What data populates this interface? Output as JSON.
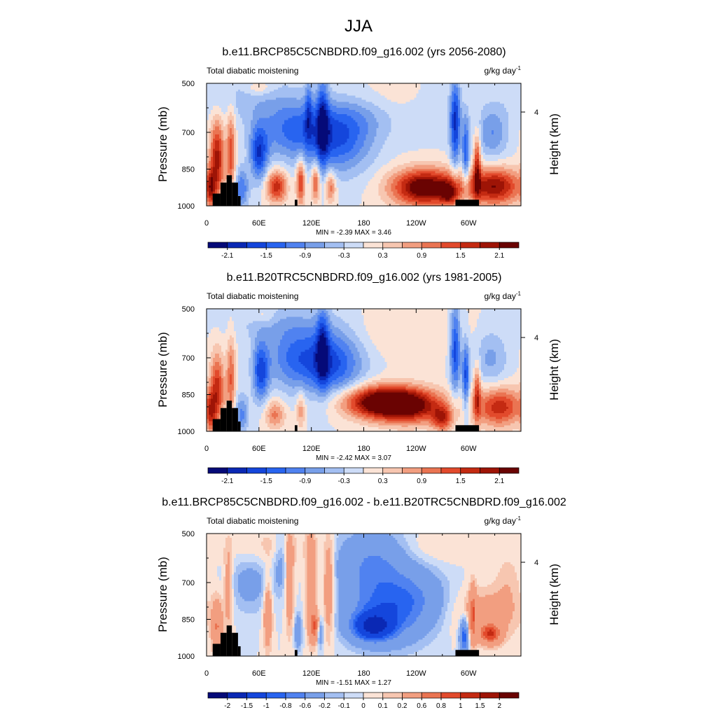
{
  "figure_title": "JJA",
  "chart_data": [
    {
      "type": "heatmap",
      "title": "b.e11.BRCP85C5CNBDRD.f09_g16.002 (yrs 2056-2080)",
      "left_string": "Total diabatic moistening",
      "units_base": "g/kg day",
      "units_exp": "-1",
      "ylabel": "Pressure (mb)",
      "ylabel_right": "Height (km)",
      "yticks": [
        "500",
        "700",
        "850",
        "1000"
      ],
      "yticks_right": [
        "4"
      ],
      "xticks": [
        "0",
        "60E",
        "120E",
        "180",
        "120W",
        "60W"
      ],
      "ylim": [
        1000,
        500
      ],
      "xlim": [
        0,
        360
      ],
      "min_max_text": "MIN =  -2.39  MAX =   3.46",
      "colorbar_labels": [
        "-2.1",
        "-1.5",
        "-0.9",
        "-0.3",
        "0.3",
        "0.9",
        "1.5",
        "2.1"
      ],
      "colorbar_label_every": 2,
      "colorbar_label_offset": 1,
      "blobs": [
        {
          "lon": 150,
          "p": 730,
          "rl": 40,
          "rp": 140,
          "v": -1.4
        },
        {
          "lon": 95,
          "p": 690,
          "rl": 40,
          "rp": 120,
          "v": -1.1
        },
        {
          "lon": 60,
          "p": 790,
          "rl": 10,
          "rp": 110,
          "v": -1.6
        },
        {
          "lon": 133,
          "p": 640,
          "rl": 7,
          "rp": 190,
          "v": -1.3
        },
        {
          "lon": 117,
          "p": 600,
          "rl": 4,
          "rp": 120,
          "v": -0.9
        },
        {
          "lon": 285,
          "p": 660,
          "rl": 6,
          "rp": 180,
          "v": -1.8
        },
        {
          "lon": 297,
          "p": 780,
          "rl": 4,
          "rp": 150,
          "v": -1.4
        },
        {
          "lon": 327,
          "p": 700,
          "rl": 18,
          "rp": 110,
          "v": -0.9
        },
        {
          "lon": 40,
          "p": 930,
          "rl": 8,
          "rp": 80,
          "v": -1.2
        },
        {
          "lon": 50,
          "p": 560,
          "rl": 70,
          "rp": 90,
          "v": -0.4
        },
        {
          "lon": 260,
          "p": 600,
          "rl": 30,
          "rp": 110,
          "v": -0.35
        },
        {
          "lon": 175,
          "p": 620,
          "rl": 50,
          "rp": 100,
          "v": -0.5
        },
        {
          "lon": 250,
          "p": 925,
          "rl": 38,
          "rp": 75,
          "v": 2.6
        },
        {
          "lon": 278,
          "p": 950,
          "rl": 10,
          "rp": 50,
          "v": 1.2
        },
        {
          "lon": 12,
          "p": 800,
          "rl": 8,
          "rp": 150,
          "v": 1.9
        },
        {
          "lon": 28,
          "p": 780,
          "rl": 5,
          "rp": 170,
          "v": 1.4
        },
        {
          "lon": 80,
          "p": 920,
          "rl": 12,
          "rp": 65,
          "v": 1.7
        },
        {
          "lon": 108,
          "p": 900,
          "rl": 5,
          "rp": 95,
          "v": 1.6
        },
        {
          "lon": 125,
          "p": 900,
          "rl": 5,
          "rp": 80,
          "v": 1.4
        },
        {
          "lon": 142,
          "p": 920,
          "rl": 6,
          "rp": 65,
          "v": 1.2
        },
        {
          "lon": 330,
          "p": 920,
          "rl": 30,
          "rp": 75,
          "v": 2.1
        },
        {
          "lon": 310,
          "p": 830,
          "rl": 4,
          "rp": 130,
          "v": 1.6
        },
        {
          "lon": 5,
          "p": 930,
          "rl": 5,
          "rp": 80,
          "v": 1.3
        },
        {
          "lon": 60,
          "p": 520,
          "rl": 15,
          "rp": 30,
          "v": 0.5
        },
        {
          "lon": 200,
          "p": 560,
          "rl": 90,
          "rp": 80,
          "v": 0.3
        }
      ]
    },
    {
      "type": "heatmap",
      "title": "b.e11.B20TRC5CNBDRD.f09_g16.002 (yrs 1981-2005)",
      "left_string": "Total diabatic moistening",
      "units_base": "g/kg day",
      "units_exp": "-1",
      "ylabel": "Pressure (mb)",
      "ylabel_right": "Height (km)",
      "yticks": [
        "500",
        "700",
        "850",
        "1000"
      ],
      "yticks_right": [
        "4"
      ],
      "xticks": [
        "0",
        "60E",
        "120E",
        "180",
        "120W",
        "60W"
      ],
      "ylim": [
        1000,
        500
      ],
      "xlim": [
        0,
        360
      ],
      "min_max_text": "MIN =  -2.42  MAX =   3.07",
      "colorbar_labels": [
        "-2.1",
        "-1.5",
        "-0.9",
        "-0.3",
        "0.3",
        "0.9",
        "1.5",
        "2.1"
      ],
      "colorbar_label_every": 2,
      "colorbar_label_offset": 1,
      "blobs": [
        {
          "lon": 145,
          "p": 720,
          "rl": 35,
          "rp": 140,
          "v": -1.5
        },
        {
          "lon": 100,
          "p": 700,
          "rl": 35,
          "rp": 130,
          "v": -1.1
        },
        {
          "lon": 62,
          "p": 760,
          "rl": 9,
          "rp": 120,
          "v": -1.5
        },
        {
          "lon": 133,
          "p": 650,
          "rl": 7,
          "rp": 170,
          "v": -1.2
        },
        {
          "lon": 285,
          "p": 660,
          "rl": 6,
          "rp": 180,
          "v": -1.7
        },
        {
          "lon": 297,
          "p": 780,
          "rl": 4,
          "rp": 150,
          "v": -1.5
        },
        {
          "lon": 325,
          "p": 700,
          "rl": 20,
          "rp": 120,
          "v": -0.7
        },
        {
          "lon": 40,
          "p": 930,
          "rl": 8,
          "rp": 80,
          "v": -1.0
        },
        {
          "lon": 85,
          "p": 560,
          "rl": 60,
          "rp": 80,
          "v": -0.4
        },
        {
          "lon": 200,
          "p": 880,
          "rl": 45,
          "rp": 65,
          "v": 2.6
        },
        {
          "lon": 235,
          "p": 900,
          "rl": 40,
          "rp": 70,
          "v": 1.6
        },
        {
          "lon": 270,
          "p": 950,
          "rl": 12,
          "rp": 50,
          "v": 1.4
        },
        {
          "lon": 12,
          "p": 820,
          "rl": 8,
          "rp": 140,
          "v": 1.6
        },
        {
          "lon": 28,
          "p": 780,
          "rl": 5,
          "rp": 170,
          "v": 1.2
        },
        {
          "lon": 78,
          "p": 930,
          "rl": 12,
          "rp": 60,
          "v": 1.0
        },
        {
          "lon": 108,
          "p": 910,
          "rl": 5,
          "rp": 80,
          "v": 0.8
        },
        {
          "lon": 335,
          "p": 900,
          "rl": 28,
          "rp": 80,
          "v": 1.7
        },
        {
          "lon": 310,
          "p": 840,
          "rl": 4,
          "rp": 120,
          "v": 1.3
        },
        {
          "lon": 5,
          "p": 930,
          "rl": 5,
          "rp": 80,
          "v": 1.1
        },
        {
          "lon": 65,
          "p": 530,
          "rl": 12,
          "rp": 30,
          "v": 0.4
        },
        {
          "lon": 230,
          "p": 600,
          "rl": 80,
          "rp": 100,
          "v": 0.3
        }
      ]
    },
    {
      "type": "heatmap",
      "title": "b.e11.BRCP85C5CNBDRD.f09_g16.002 - b.e11.B20TRC5CNBDRD.f09_g16.002",
      "left_string": "Total diabatic moistening",
      "units_base": "g/kg day",
      "units_exp": "-1",
      "ylabel": "Pressure (mb)",
      "ylabel_right": "Height (km)",
      "yticks": [
        "500",
        "700",
        "850",
        "1000"
      ],
      "yticks_right": [
        "4"
      ],
      "xticks": [
        "0",
        "60E",
        "120E",
        "180",
        "120W",
        "60W"
      ],
      "ylim": [
        1000,
        500
      ],
      "xlim": [
        0,
        360
      ],
      "min_max_text": "MIN =  -1.51  MAX =   1.27",
      "colorbar_labels": [
        "-2",
        "-1.5",
        "-1",
        "-0.8",
        "-0.6",
        "-0.2",
        "-0.1",
        "0",
        "0.1",
        "0.2",
        "0.6",
        "0.8",
        "1",
        "1.5",
        "2"
      ],
      "colorbar_label_every": 1,
      "colorbar_label_offset": 1,
      "blobs": [
        {
          "lon": 190,
          "p": 880,
          "rl": 22,
          "rp": 55,
          "v": -1.3
        },
        {
          "lon": 205,
          "p": 820,
          "rl": 45,
          "rp": 130,
          "v": -0.8
        },
        {
          "lon": 190,
          "p": 620,
          "rl": 40,
          "rp": 130,
          "v": -0.6
        },
        {
          "lon": 240,
          "p": 750,
          "rl": 35,
          "rp": 120,
          "v": -0.35
        },
        {
          "lon": 295,
          "p": 920,
          "rl": 5,
          "rp": 70,
          "v": -1.0
        },
        {
          "lon": 50,
          "p": 700,
          "rl": 25,
          "rp": 120,
          "v": -0.3
        },
        {
          "lon": 85,
          "p": 620,
          "rl": 8,
          "rp": 120,
          "v": -0.3
        },
        {
          "lon": 105,
          "p": 900,
          "rl": 4,
          "rp": 70,
          "v": -0.5
        },
        {
          "lon": 130,
          "p": 900,
          "rl": 4,
          "rp": 60,
          "v": -0.6
        },
        {
          "lon": 12,
          "p": 880,
          "rl": 6,
          "rp": 110,
          "v": 0.6
        },
        {
          "lon": 25,
          "p": 720,
          "rl": 5,
          "rp": 160,
          "v": 0.4
        },
        {
          "lon": 70,
          "p": 820,
          "rl": 5,
          "rp": 150,
          "v": 0.5
        },
        {
          "lon": 95,
          "p": 700,
          "rl": 5,
          "rp": 200,
          "v": 0.45
        },
        {
          "lon": 120,
          "p": 700,
          "rl": 6,
          "rp": 220,
          "v": 0.5
        },
        {
          "lon": 140,
          "p": 720,
          "rl": 6,
          "rp": 200,
          "v": 0.55
        },
        {
          "lon": 125,
          "p": 880,
          "rl": 6,
          "rp": 60,
          "v": 0.8
        },
        {
          "lon": 325,
          "p": 910,
          "rl": 12,
          "rp": 40,
          "v": 0.9
        },
        {
          "lon": 320,
          "p": 830,
          "rl": 35,
          "rp": 100,
          "v": 0.35
        },
        {
          "lon": 305,
          "p": 830,
          "rl": 4,
          "rp": 120,
          "v": 0.6
        },
        {
          "lon": 345,
          "p": 700,
          "rl": 15,
          "rp": 120,
          "v": 0.15
        },
        {
          "lon": 70,
          "p": 560,
          "rl": 50,
          "rp": 80,
          "v": 0.15
        },
        {
          "lon": 255,
          "p": 560,
          "rl": 40,
          "rp": 70,
          "v": 0.12
        }
      ]
    }
  ]
}
